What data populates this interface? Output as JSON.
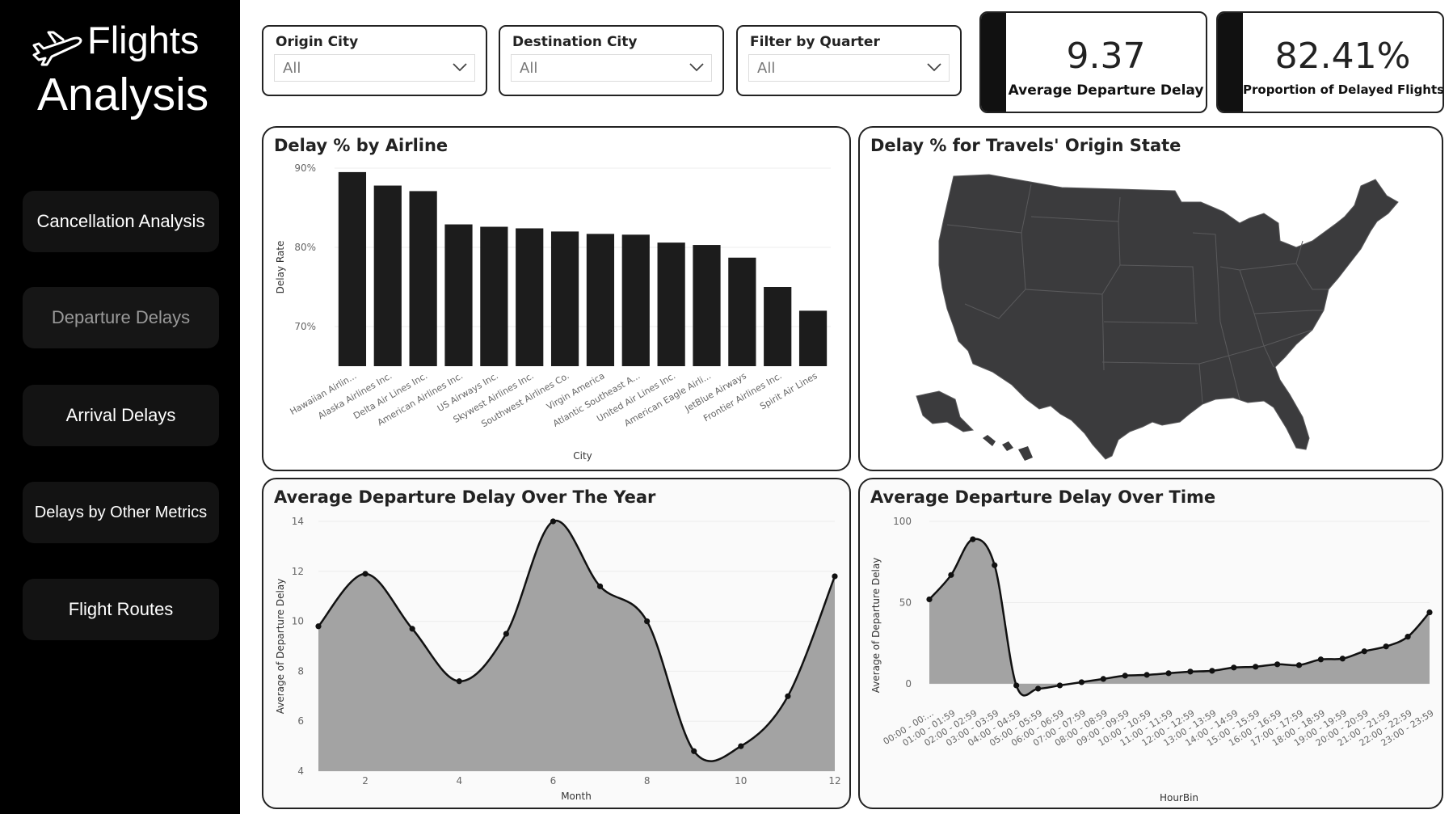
{
  "sidebar": {
    "logo": {
      "line1": "Flights",
      "line2": "Analysis"
    },
    "nav": [
      {
        "label": "Cancellation Analysis",
        "active": false
      },
      {
        "label": "Departure Delays",
        "active": true
      },
      {
        "label": "Arrival Delays",
        "active": false
      },
      {
        "label": "Delays by Other Metrics",
        "active": false
      },
      {
        "label": "Flight Routes",
        "active": false
      }
    ]
  },
  "filters": [
    {
      "title": "Origin City",
      "value": "All"
    },
    {
      "title": "Destination City",
      "value": "All"
    },
    {
      "title": "Filter by Quarter",
      "value": "All"
    }
  ],
  "kpis": [
    {
      "value": "9.37",
      "label": "Average Departure Delay"
    },
    {
      "value": "82.41%",
      "label": "Proportion of Delayed Flights"
    }
  ],
  "colors": {
    "bar": "#1c1c1c",
    "area": "#a3a3a3",
    "map": "#3b3b3d",
    "text": "#222222"
  },
  "map": {
    "title": "Delay % for Travels' Origin State"
  },
  "chart_data": [
    {
      "type": "bar",
      "title": "Delay % by Airline",
      "xlabel": "City",
      "ylabel": "Delay Rate",
      "categories": [
        "Hawaiian Airlin...",
        "Alaska Airlines Inc.",
        "Delta Air Lines Inc.",
        "American Airlines Inc.",
        "US Airways Inc.",
        "Skywest Airlines Inc.",
        "Southwest Airlines Co.",
        "Virgin America",
        "Atlantic Southeast A...",
        "United Air Lines Inc.",
        "American Eagle Airli...",
        "JetBlue Airways",
        "Frontier Airlines Inc.",
        "Spirit Air Lines"
      ],
      "values": [
        89.5,
        87.8,
        87.1,
        82.9,
        82.6,
        82.4,
        82.0,
        81.7,
        81.6,
        80.6,
        80.3,
        78.7,
        75.0,
        72.0
      ],
      "yticks": [
        "70%",
        "80%",
        "90%"
      ],
      "ylim": [
        65,
        90
      ]
    },
    {
      "type": "area",
      "title": "Average Departure Delay Over The Year",
      "xlabel": "Month",
      "ylabel": "Average of Departure Delay",
      "x": [
        1,
        2,
        3,
        4,
        5,
        6,
        7,
        8,
        9,
        10,
        11,
        12
      ],
      "values": [
        9.8,
        11.9,
        9.7,
        7.6,
        9.5,
        14.0,
        11.4,
        10.0,
        4.8,
        5.0,
        7.0,
        11.8
      ],
      "xticks": [
        "2",
        "4",
        "6",
        "8",
        "10",
        "12"
      ],
      "yticks": [
        "4",
        "6",
        "8",
        "10",
        "12",
        "14"
      ],
      "ylim": [
        4,
        14
      ]
    },
    {
      "type": "area",
      "title": "Average Departure Delay Over Time",
      "xlabel": "HourBin",
      "ylabel": "Average of Departure Delay",
      "categories": [
        "00:00 - 00:...",
        "01:00 - 01:59",
        "02:00 - 02:59",
        "03:00 - 03:59",
        "04:00 - 04:59",
        "05:00 - 05:59",
        "06:00 - 06:59",
        "07:00 - 07:59",
        "08:00 - 08:59",
        "09:00 - 09:59",
        "10:00 - 10:59",
        "11:00 - 11:59",
        "12:00 - 12:59",
        "13:00 - 13:59",
        "14:00 - 14:59",
        "15:00 - 15:59",
        "16:00 - 16:59",
        "17:00 - 17:59",
        "18:00 - 18:59",
        "19:00 - 19:59",
        "20:00 - 20:59",
        "21:00 - 21:59",
        "22:00 - 22:59",
        "23:00 - 23:59"
      ],
      "values": [
        52,
        67,
        89,
        73,
        -1,
        -3,
        -1,
        1,
        3,
        5,
        5.5,
        6.5,
        7.5,
        8,
        10,
        10.5,
        12,
        11.5,
        15,
        15.5,
        20,
        23,
        29,
        44
      ],
      "yticks": [
        "0",
        "50",
        "100"
      ],
      "ylim": [
        -8,
        100
      ]
    }
  ]
}
